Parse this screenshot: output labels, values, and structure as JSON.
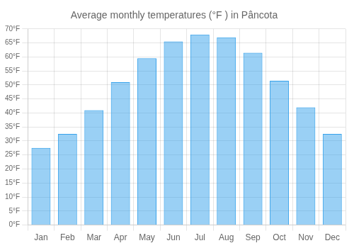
{
  "chart_data": {
    "type": "bar",
    "title": "Average monthly temperatures (°F ) in Pâncota",
    "categories": [
      "Jan",
      "Feb",
      "Mar",
      "Apr",
      "May",
      "Jun",
      "Jul",
      "Aug",
      "Sep",
      "Oct",
      "Nov",
      "Dec"
    ],
    "values": [
      27.5,
      32.5,
      41.0,
      51.0,
      59.5,
      65.5,
      68.0,
      67.0,
      61.5,
      51.5,
      42.0,
      32.5
    ],
    "ylim": [
      0,
      70
    ],
    "yticks": [
      {
        "value": 0,
        "label": "0°F"
      },
      {
        "value": 5,
        "label": "5°F"
      },
      {
        "value": 10,
        "label": "10°F"
      },
      {
        "value": 15,
        "label": "15°F"
      },
      {
        "value": 20,
        "label": "20°F"
      },
      {
        "value": 25,
        "label": "25°F"
      },
      {
        "value": 30,
        "label": "30°F"
      },
      {
        "value": 35,
        "label": "35°F"
      },
      {
        "value": 40,
        "label": "40°F"
      },
      {
        "value": 45,
        "label": "45°F"
      },
      {
        "value": 50,
        "label": "50°F"
      },
      {
        "value": 55,
        "label": "55°F"
      },
      {
        "value": 60,
        "label": "60°F"
      },
      {
        "value": 65,
        "label": "65°F"
      },
      {
        "value": 70,
        "label": "70°F"
      }
    ],
    "grid": true
  }
}
